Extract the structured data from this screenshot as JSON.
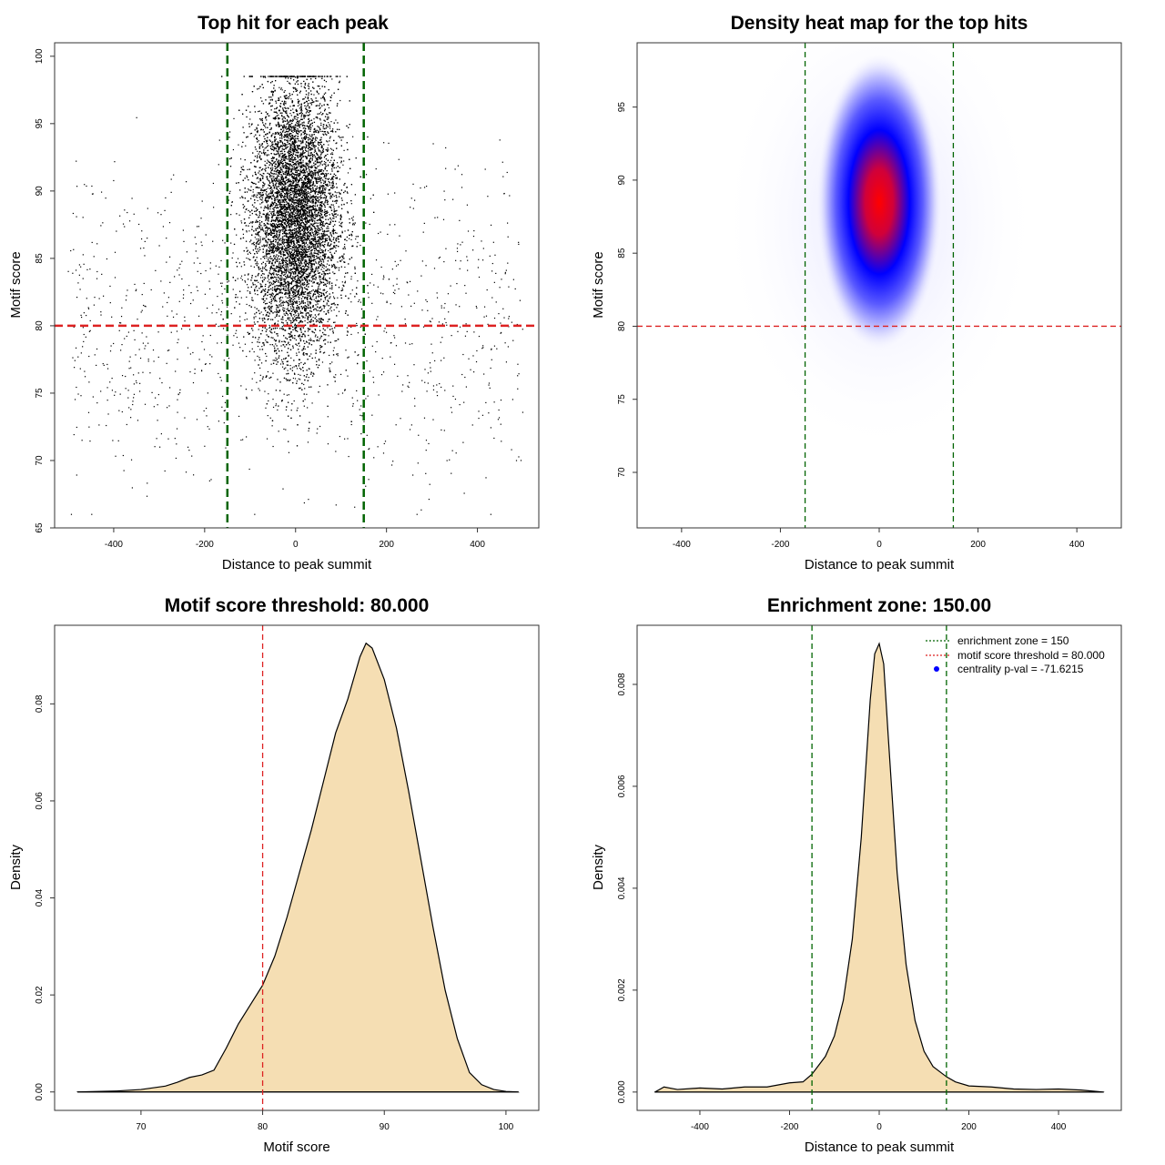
{
  "colors": {
    "zone_line": "#006400",
    "threshold_line": "#dd2222",
    "density_fill": "#f5deb3",
    "points": "#000000",
    "heat_low": "#ffffff",
    "heat_mid": "#0000ff",
    "heat_high": "#ff0000",
    "legend_point": "#0000ff"
  },
  "chart_data": [
    {
      "type": "scatter",
      "title": "Top hit for each peak",
      "xlabel": "Distance to peak summit",
      "ylabel": "Motif score",
      "xlim": [
        -530,
        535
      ],
      "ylim": [
        65,
        101
      ],
      "x_ticks": [
        -400,
        -200,
        0,
        200,
        400
      ],
      "y_ticks": [
        65,
        70,
        75,
        80,
        85,
        90,
        95,
        100
      ],
      "x_tick_labels": [
        "-400",
        "-200",
        "0",
        "200",
        "400"
      ],
      "y_tick_labels": [
        "65",
        "70",
        "75",
        "80",
        "85",
        "90",
        "95",
        "100"
      ],
      "vlines": [
        -150,
        150
      ],
      "hline": 80,
      "core_cluster": {
        "x_mean": 0,
        "x_sd": 48,
        "y_mean": 88,
        "y_sd": 5,
        "n": 14000
      },
      "background": {
        "x_range": [
          -500,
          500
        ],
        "y_mean": 80,
        "y_sd": 5.5,
        "n": 1100
      },
      "x_range_data": [
        -500,
        500
      ],
      "y_range_data": [
        66,
        98.5
      ]
    },
    {
      "type": "heatmap",
      "title": "Density heat map for the top hits",
      "xlabel": "Distance to peak summit",
      "ylabel": "Motif score",
      "xlim": [
        -490,
        490
      ],
      "ylim": [
        66.2,
        99.4
      ],
      "x_ticks": [
        -400,
        -200,
        0,
        200,
        400
      ],
      "y_ticks": [
        70,
        75,
        80,
        85,
        90,
        95
      ],
      "x_tick_labels": [
        "-400",
        "-200",
        "0",
        "200",
        "400"
      ],
      "y_tick_labels": [
        "70",
        "75",
        "80",
        "85",
        "90",
        "95"
      ],
      "vlines": [
        -150,
        150
      ],
      "hline": 80,
      "peak": {
        "x": 0,
        "y": 88.5
      }
    },
    {
      "type": "area",
      "title": "Motif score threshold: 80.000",
      "xlabel": "Motif score",
      "ylabel": "Density",
      "xlim": [
        62.9,
        102.7
      ],
      "ylim": [
        -0.0038,
        0.0962
      ],
      "x_ticks": [
        70,
        80,
        90,
        100
      ],
      "y_ticks": [
        0.0,
        0.02,
        0.04,
        0.06,
        0.08
      ],
      "x_tick_labels": [
        "70",
        "80",
        "90",
        "100"
      ],
      "y_tick_labels": [
        "0.00",
        "0.02",
        "0.04",
        "0.06",
        "0.08"
      ],
      "vline": 80,
      "x": [
        64.8,
        68,
        70,
        72,
        73,
        74,
        75,
        76,
        77,
        78,
        79,
        80,
        81,
        82,
        83,
        84,
        85,
        86,
        87,
        88,
        88.5,
        89,
        90,
        91,
        92,
        93,
        94,
        95,
        96,
        97,
        98,
        99,
        100,
        101
      ],
      "y": [
        0.0,
        0.0002,
        0.0005,
        0.0012,
        0.002,
        0.003,
        0.0035,
        0.0045,
        0.009,
        0.014,
        0.018,
        0.022,
        0.028,
        0.036,
        0.045,
        0.054,
        0.064,
        0.074,
        0.081,
        0.0897,
        0.0925,
        0.0915,
        0.085,
        0.075,
        0.062,
        0.048,
        0.034,
        0.021,
        0.011,
        0.004,
        0.0015,
        0.0005,
        0.0001,
        0.0
      ]
    },
    {
      "type": "area",
      "title": "Enrichment zone: 150.00",
      "xlabel": "Distance to peak summit",
      "ylabel": "Density",
      "xlim": [
        -540,
        540
      ],
      "ylim": [
        -0.00036,
        0.00916
      ],
      "x_ticks": [
        -400,
        -200,
        0,
        200,
        400
      ],
      "y_ticks": [
        0.0,
        0.002,
        0.004,
        0.006,
        0.008
      ],
      "x_tick_labels": [
        "-400",
        "-200",
        "0",
        "200",
        "400"
      ],
      "y_tick_labels": [
        "0.000",
        "0.002",
        "0.004",
        "0.006",
        "0.008"
      ],
      "vlines": [
        -150,
        150
      ],
      "x": [
        -500,
        -480,
        -450,
        -400,
        -350,
        -300,
        -250,
        -200,
        -170,
        -150,
        -120,
        -100,
        -80,
        -60,
        -40,
        -20,
        -10,
        0,
        10,
        20,
        40,
        60,
        80,
        100,
        120,
        150,
        170,
        200,
        250,
        300,
        350,
        400,
        450,
        500
      ],
      "y": [
        0.0,
        0.0001,
        5e-05,
        8e-05,
        6e-05,
        0.0001,
        0.0001,
        0.00018,
        0.0002,
        0.00035,
        0.0007,
        0.0011,
        0.0018,
        0.003,
        0.005,
        0.0077,
        0.0086,
        0.0088,
        0.0084,
        0.007,
        0.0043,
        0.0025,
        0.0014,
        0.0008,
        0.0005,
        0.0003,
        0.0002,
        0.00012,
        0.0001,
        6e-05,
        5e-05,
        6e-05,
        4e-05,
        0.0
      ],
      "legend": [
        {
          "label": "enrichment zone = 150",
          "style": "dotted-green"
        },
        {
          "label": "motif score threshold = 80.000",
          "style": "dotted-red"
        },
        {
          "label": "centrality p-val = -71.6215",
          "style": "point-blue"
        }
      ]
    }
  ]
}
